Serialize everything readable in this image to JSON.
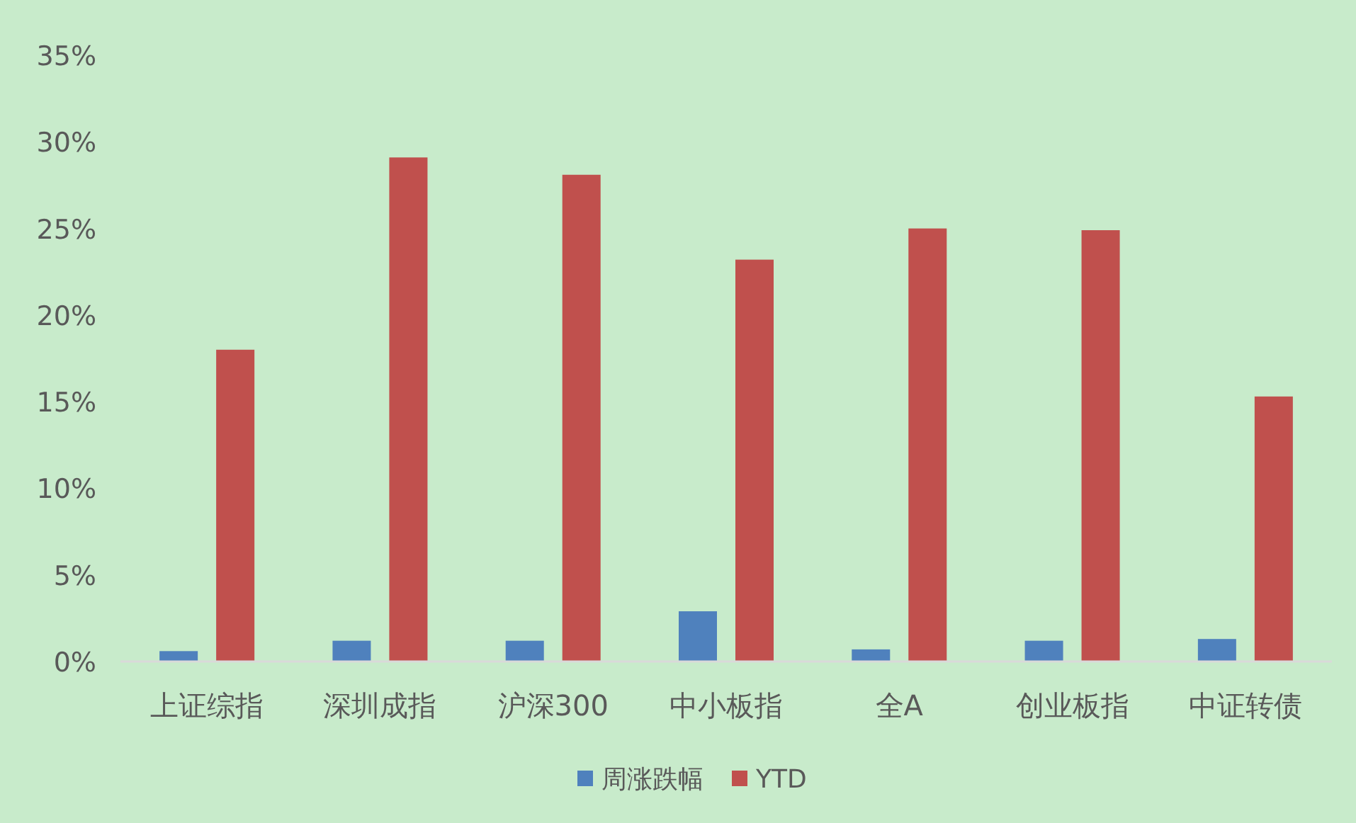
{
  "chart_data": {
    "type": "bar",
    "categories": [
      "上证综指",
      "深圳成指",
      "沪深300",
      "中小板指",
      "全A",
      "创业板指",
      "中证转债"
    ],
    "series": [
      {
        "name": "周涨跌幅",
        "color": "#4f81bd",
        "values": [
          0.6,
          1.2,
          1.2,
          2.9,
          0.7,
          1.2,
          1.3
        ]
      },
      {
        "name": "YTD",
        "color": "#c0504d",
        "values": [
          18.0,
          29.1,
          28.1,
          23.2,
          25.0,
          24.9,
          15.3
        ]
      }
    ],
    "ylim": [
      0,
      35
    ],
    "yticks": [
      {
        "value": 0,
        "label": "0%"
      },
      {
        "value": 5,
        "label": "5%"
      },
      {
        "value": 10,
        "label": "10%"
      },
      {
        "value": 15,
        "label": "15%"
      },
      {
        "value": 20,
        "label": "20%"
      },
      {
        "value": 25,
        "label": "25%"
      },
      {
        "value": 30,
        "label": "30%"
      },
      {
        "value": 35,
        "label": "35%"
      }
    ],
    "legend": "bottom"
  }
}
